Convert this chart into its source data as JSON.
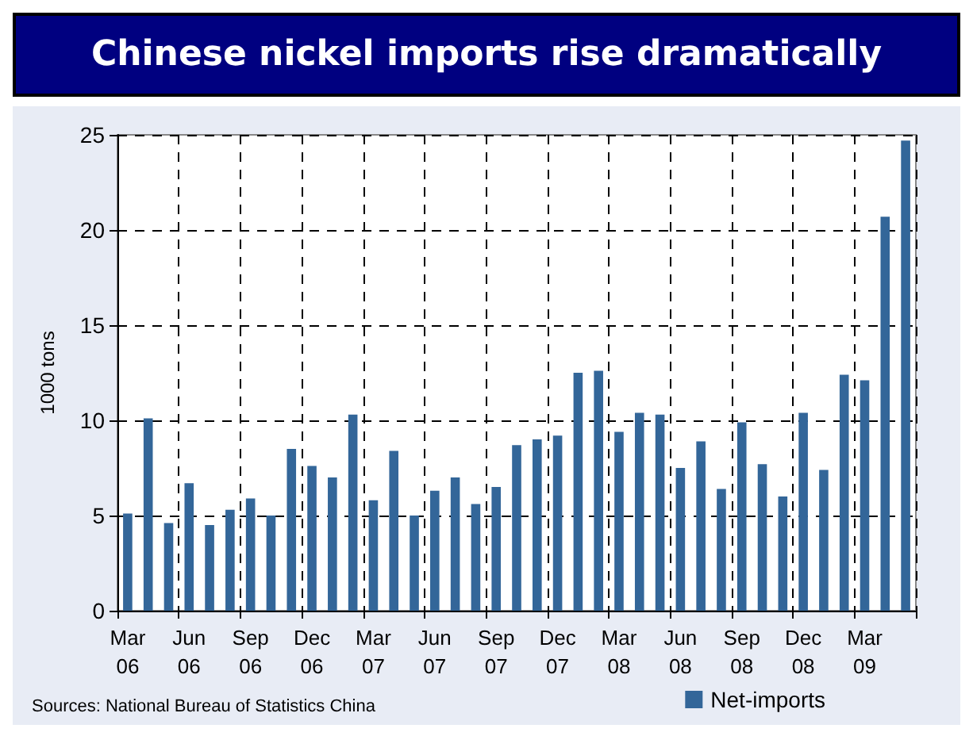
{
  "chart_data": {
    "type": "bar",
    "title": "Chinese nickel imports rise dramatically",
    "ylabel": "1000 tons",
    "categories": [
      "Mar 06",
      null,
      null,
      "Jun 06",
      null,
      null,
      "Sep 06",
      null,
      null,
      "Dec 06",
      null,
      null,
      "Mar 07",
      null,
      null,
      "Jun 07",
      null,
      null,
      "Sep 07",
      null,
      null,
      "Dec 07",
      null,
      null,
      "Mar 08",
      null,
      null,
      "Jun 08",
      null,
      null,
      "Sep 08",
      null,
      null,
      "Dec 08",
      null,
      null,
      "Mar 09",
      null,
      null
    ],
    "series": [
      {
        "name": "Net-imports",
        "color": "#336699",
        "values": [
          5.1,
          10.1,
          4.6,
          6.7,
          4.5,
          5.3,
          5.9,
          5.0,
          8.5,
          7.6,
          7.0,
          10.3,
          5.8,
          8.4,
          5.0,
          6.3,
          7.0,
          5.6,
          6.5,
          8.7,
          9.0,
          9.2,
          12.5,
          12.6,
          9.4,
          10.4,
          10.3,
          7.5,
          8.9,
          6.4,
          9.9,
          7.7,
          6.0,
          10.4,
          7.4,
          12.4,
          12.1,
          20.7,
          24.7
        ]
      }
    ],
    "ylim": [
      0,
      25
    ],
    "yticks": [
      0,
      5,
      10,
      15,
      20,
      25
    ],
    "grid": true,
    "legend": "bottom right",
    "annotations": [
      "Sources: National Bureau of Statistics China"
    ]
  }
}
